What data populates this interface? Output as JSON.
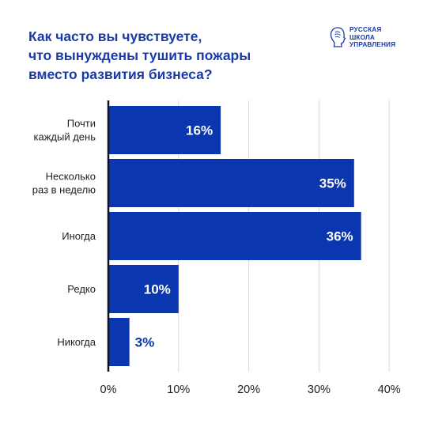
{
  "title_lines": [
    "Как часто вы чувствуете,",
    "что вынуждены тушить пожары",
    "вместо развития бизнеса?"
  ],
  "logo": {
    "lines": [
      "РУССКАЯ",
      "ШКОЛА",
      "УПРАВЛЕНИЯ"
    ],
    "icon": "profile-head-logo-icon"
  },
  "colors": {
    "accent": "#1a3aa8",
    "bar": "#0a36b0",
    "grid": "#d9d9d9",
    "axis": "#111111"
  },
  "chart_data": {
    "type": "bar",
    "orientation": "horizontal",
    "title": "Как часто вы чувствуете, что вынуждены тушить пожары вместо развития бизнеса?",
    "categories": [
      [
        "Почти",
        "каждый день"
      ],
      [
        "Несколько",
        "раз в неделю"
      ],
      [
        "Иногда"
      ],
      [
        "Редко"
      ],
      [
        "Никогда"
      ]
    ],
    "values": [
      16,
      35,
      36,
      10,
      3
    ],
    "value_labels": [
      "16%",
      "35%",
      "36%",
      "10%",
      "3%"
    ],
    "xlim": [
      0,
      40
    ],
    "xticks": [
      0,
      10,
      20,
      30,
      40
    ],
    "xtick_labels": [
      "0%",
      "10%",
      "20%",
      "30%",
      "40%"
    ],
    "xlabel": "",
    "ylabel": "",
    "grid": "vertical",
    "legend": "none"
  }
}
